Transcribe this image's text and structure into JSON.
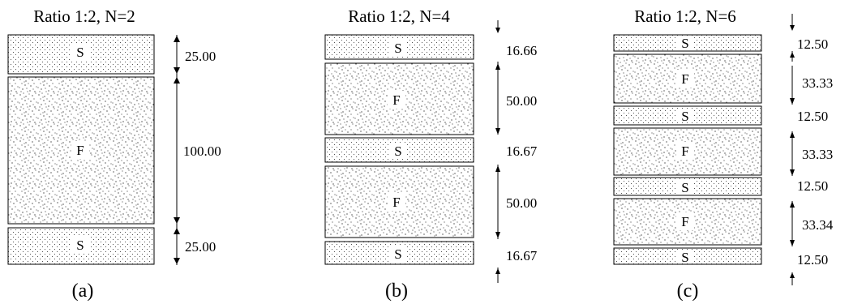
{
  "colors": {
    "ink": "#000000",
    "background": "#ffffff",
    "label_patch": "#ffffff"
  },
  "panels": [
    {
      "title": "Ratio 1:2, N=2",
      "caption": "(a)",
      "layers": [
        {
          "label": "S",
          "dimension": "25.00",
          "material": "sparse-dots"
        },
        {
          "label": "F",
          "dimension": "100.00",
          "material": "dense-speckle"
        },
        {
          "label": "S",
          "dimension": "25.00",
          "material": "sparse-dots"
        }
      ]
    },
    {
      "title": "Ratio 1:2, N=4",
      "caption": "(b)",
      "layers": [
        {
          "label": "S",
          "dimension": "16.66",
          "material": "sparse-dots"
        },
        {
          "label": "F",
          "dimension": "50.00",
          "material": "dense-speckle"
        },
        {
          "label": "S",
          "dimension": "16.67",
          "material": "sparse-dots"
        },
        {
          "label": "F",
          "dimension": "50.00",
          "material": "dense-speckle"
        },
        {
          "label": "S",
          "dimension": "16.67",
          "material": "sparse-dots"
        }
      ]
    },
    {
      "title": "Ratio 1:2, N=6",
      "caption": "(c)",
      "layers": [
        {
          "label": "S",
          "dimension": "12.50",
          "material": "sparse-dots"
        },
        {
          "label": "F",
          "dimension": "33.33",
          "material": "dense-speckle"
        },
        {
          "label": "S",
          "dimension": "12.50",
          "material": "sparse-dots"
        },
        {
          "label": "F",
          "dimension": "33.33",
          "material": "dense-speckle"
        },
        {
          "label": "S",
          "dimension": "12.50",
          "material": "sparse-dots"
        },
        {
          "label": "F",
          "dimension": "33.34",
          "material": "dense-speckle"
        },
        {
          "label": "S",
          "dimension": "12.50",
          "material": "sparse-dots"
        }
      ]
    }
  ]
}
